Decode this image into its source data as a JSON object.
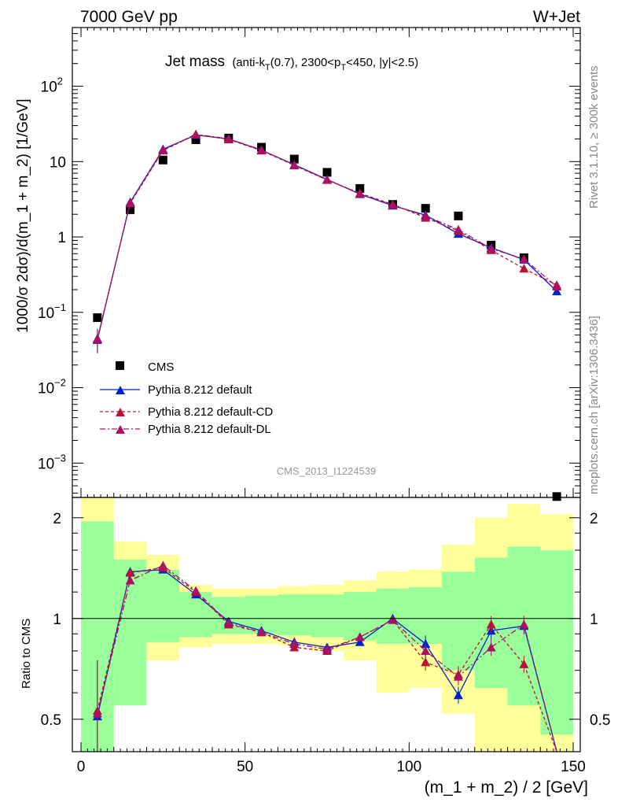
{
  "header": {
    "left": "7000 GeV pp",
    "right": "W+Jet"
  },
  "side_text": {
    "rivet": "Rivet 3.1.10, ≥ 300k events",
    "mcplots": "mcplots.cern.ch [arXiv:1306.3436]"
  },
  "analysis_id": "CMS_2013_I1224539",
  "chart_data": {
    "type": "scatter",
    "title": {
      "main": "Jet mass",
      "detail_prefix": "(anti-k",
      "detail_sub1": "T",
      "detail_mid": "(0.7), 2300<p",
      "detail_sub2": "T",
      "detail_suffix": "<450, |y|<2.5)"
    },
    "xlabel": "(m_1 + m_2) / 2 [GeV]",
    "ylabel": "1000/σ 2dσ)/d(m_1 + m_2) [1/GeV]",
    "ylabel_ratio": "Ratio to CMS",
    "xlim": [
      0,
      150
    ],
    "x_ticks": [
      "0",
      "50",
      "100",
      "150"
    ],
    "main_y_scale": "log",
    "main_ylim": [
      0.00035,
      600
    ],
    "main_y_ticks": [
      {
        "base": "10",
        "exp": "2"
      },
      {
        "base": "10",
        "exp": ""
      },
      {
        "base": "1",
        "exp": ""
      },
      {
        "base": "10",
        "exp": "−1"
      },
      {
        "base": "10",
        "exp": "−2"
      },
      {
        "base": "10",
        "exp": "−3"
      }
    ],
    "ratio_y_scale": "log",
    "ratio_ylim": [
      0.4,
      2.3
    ],
    "ratio_y_ticks": [
      "2",
      "1",
      "0.5"
    ],
    "x": [
      5,
      15,
      25,
      35,
      45,
      55,
      65,
      75,
      85,
      95,
      105,
      115,
      125,
      135,
      145
    ],
    "bin_edges": [
      0,
      10,
      20,
      30,
      40,
      50,
      60,
      70,
      80,
      90,
      100,
      110,
      120,
      130,
      140,
      150
    ],
    "legend": "lower-left",
    "series": [
      {
        "name": "CMS",
        "color": "#000000",
        "marker": "square",
        "line": "none",
        "values": [
          0.085,
          2.3,
          10.5,
          19.5,
          20.5,
          15.5,
          10.8,
          7.2,
          4.4,
          2.7,
          2.4,
          1.9,
          0.78,
          0.53,
          0.00036
        ]
      },
      {
        "name": "Pythia 8.212 default",
        "color": "#0022cc",
        "marker": "triangle",
        "line": "solid",
        "values": [
          0.043,
          2.9,
          14.6,
          22.5,
          20.0,
          14.2,
          9.1,
          5.8,
          3.7,
          2.6,
          1.95,
          1.1,
          0.72,
          0.5,
          0.19
        ],
        "ratio": [
          0.51,
          1.38,
          1.4,
          1.18,
          0.98,
          0.92,
          0.85,
          0.82,
          0.85,
          1.0,
          0.84,
          0.59,
          0.92,
          0.95,
          0.3
        ]
      },
      {
        "name": "Pythia 8.212 default-CD",
        "color": "#bb1133",
        "marker": "triangle",
        "line": "dashed",
        "values": [
          0.045,
          2.8,
          14.0,
          22.8,
          19.7,
          14.0,
          8.9,
          5.7,
          3.8,
          2.7,
          1.8,
          1.2,
          0.67,
          0.38,
          0.23
        ],
        "ratio": [
          0.53,
          1.37,
          1.42,
          1.2,
          0.96,
          0.91,
          0.82,
          0.8,
          0.88,
          0.99,
          0.74,
          0.68,
          0.96,
          0.73,
          0.3
        ]
      },
      {
        "name": "Pythia 8.212 default-DL",
        "color": "#aa1166",
        "marker": "triangle",
        "line": "dashdot",
        "values": [
          0.044,
          2.85,
          14.3,
          23.0,
          20.1,
          14.3,
          9.0,
          5.75,
          3.75,
          2.65,
          1.9,
          1.25,
          0.7,
          0.51,
          0.22
        ],
        "ratio": [
          0.52,
          1.3,
          1.44,
          1.21,
          0.97,
          0.91,
          0.84,
          0.81,
          0.88,
          0.99,
          0.8,
          0.67,
          0.82,
          0.96,
          0.3
        ]
      }
    ],
    "ratio_bands": {
      "green": {
        "color": "#99ff99",
        "lo": [
          0.35,
          0.55,
          0.85,
          0.88,
          0.9,
          0.9,
          0.89,
          0.88,
          0.86,
          0.84,
          0.84,
          0.7,
          0.62,
          0.55,
          0.45
        ],
        "hi": [
          1.95,
          1.5,
          1.4,
          1.2,
          1.16,
          1.17,
          1.18,
          1.18,
          1.2,
          1.23,
          1.24,
          1.38,
          1.52,
          1.64,
          1.6
        ]
      },
      "yellow": {
        "color": "#ffff99",
        "lo": [
          0.3,
          0.7,
          0.75,
          0.82,
          0.84,
          0.84,
          0.83,
          0.8,
          0.75,
          0.6,
          0.62,
          0.52,
          0.4,
          0.35,
          0.3
        ],
        "hi": [
          2.6,
          1.7,
          1.55,
          1.26,
          1.23,
          1.23,
          1.25,
          1.26,
          1.3,
          1.38,
          1.4,
          1.66,
          2.0,
          2.2,
          2.05
        ]
      }
    }
  }
}
